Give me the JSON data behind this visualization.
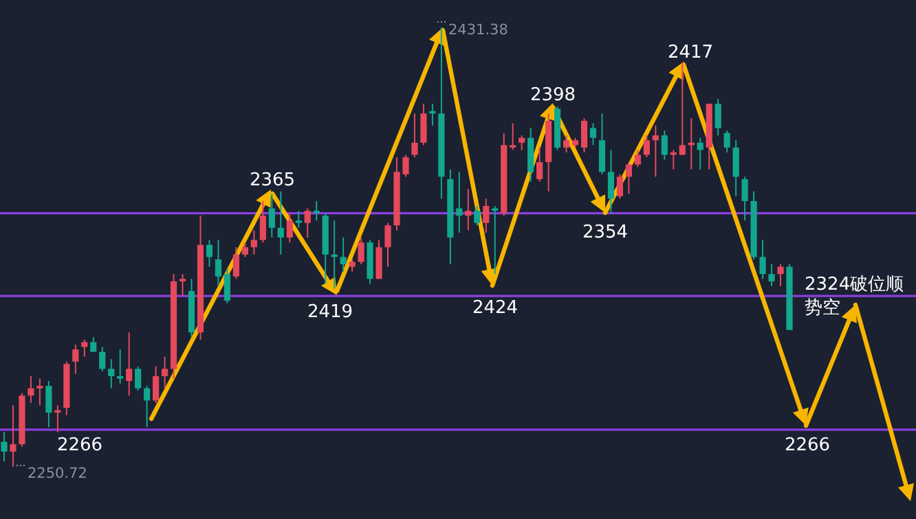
{
  "chart_data": {
    "type": "candlestick",
    "categories": [
      null,
      null,
      null,
      null,
      null,
      null,
      null,
      null,
      null,
      null,
      null,
      null,
      null,
      null,
      null,
      null,
      null,
      null,
      null,
      null,
      null,
      null,
      null,
      null,
      null,
      null,
      null,
      null,
      null,
      null,
      null,
      null,
      null,
      null,
      null,
      null,
      null,
      null,
      null,
      null,
      null,
      null,
      null,
      null,
      null,
      null,
      null,
      null,
      null,
      null,
      null,
      null,
      null,
      null,
      null,
      null,
      null,
      null,
      null,
      null,
      null,
      null,
      null,
      null,
      null,
      null,
      null,
      null,
      null,
      null,
      null,
      null,
      null,
      null,
      null,
      null,
      null,
      null,
      null,
      null,
      null,
      null,
      null,
      null,
      null,
      null,
      null,
      null,
      null
    ],
    "ohlc": [
      [
        2261,
        2265,
        2253,
        2257
      ],
      [
        2257,
        2276,
        2250.72,
        2260
      ],
      [
        2260,
        2281,
        2259,
        2280
      ],
      [
        2280,
        2288,
        2277,
        2283
      ],
      [
        2283,
        2287,
        2276,
        2284
      ],
      [
        2284,
        2286,
        2267,
        2273
      ],
      [
        2273,
        2276,
        2265,
        2274
      ],
      [
        2275,
        2294,
        2272,
        2293
      ],
      [
        2294,
        2301,
        2289,
        2299
      ],
      [
        2300,
        2303,
        2296,
        2302
      ],
      [
        2302,
        2304,
        2298,
        2298
      ],
      [
        2298,
        2300,
        2290,
        2291
      ],
      [
        2291,
        2295,
        2283,
        2288
      ],
      [
        2288,
        2299,
        2285,
        2287
      ],
      [
        2286,
        2306,
        2280,
        2291
      ],
      [
        2291,
        2292,
        2282,
        2283
      ],
      [
        2283,
        2284,
        2267,
        2278
      ],
      [
        2278,
        2292,
        2277,
        2288
      ],
      [
        2288,
        2296,
        2283,
        2291
      ],
      [
        2291,
        2330,
        2287,
        2327
      ],
      [
        2327,
        2330,
        2321,
        2328
      ],
      [
        2323,
        2328,
        2304,
        2306
      ],
      [
        2306,
        2354,
        2303,
        2342
      ],
      [
        2342,
        2344,
        2333,
        2337
      ],
      [
        2336,
        2344,
        2325,
        2329
      ],
      [
        2330,
        2332,
        2318,
        2319
      ],
      [
        2329,
        2341,
        2328,
        2338
      ],
      [
        2338,
        2343,
        2337,
        2341
      ],
      [
        2341,
        2348,
        2338,
        2344
      ],
      [
        2344,
        2360,
        2343,
        2354
      ],
      [
        2357,
        2363,
        2345,
        2349
      ],
      [
        2349,
        2364,
        2338,
        2345
      ],
      [
        2345,
        2355,
        2343,
        2352
      ],
      [
        2352,
        2356,
        2349,
        2351
      ],
      [
        2351,
        2357,
        2345,
        2356
      ],
      [
        2356,
        2360,
        2352,
        2355
      ],
      [
        2354,
        2355,
        2326,
        2338
      ],
      [
        2338,
        2352,
        2324,
        2337
      ],
      [
        2337,
        2345,
        2331,
        2334
      ],
      [
        2333,
        2336,
        2331,
        2335
      ],
      [
        2335,
        2345,
        2334,
        2343
      ],
      [
        2343,
        2344,
        2326,
        2328
      ],
      [
        2328,
        2344,
        2328,
        2341
      ],
      [
        2341,
        2351,
        2333,
        2350
      ],
      [
        2350,
        2378,
        2348,
        2372
      ],
      [
        2371,
        2379,
        2370,
        2378
      ],
      [
        2379,
        2396,
        2378,
        2384
      ],
      [
        2384,
        2400,
        2383,
        2396
      ],
      [
        2397,
        2400,
        2391,
        2396
      ],
      [
        2396,
        2431.38,
        2361,
        2370
      ],
      [
        2369,
        2373,
        2334,
        2345
      ],
      [
        2357,
        2372,
        2347,
        2354
      ],
      [
        2354,
        2365,
        2348,
        2356
      ],
      [
        2356,
        2358,
        2350,
        2351
      ],
      [
        2351,
        2361,
        2347,
        2358
      ],
      [
        2357,
        2358,
        2330,
        2356
      ],
      [
        2355,
        2388,
        2354,
        2383
      ],
      [
        2382,
        2392,
        2381,
        2383
      ],
      [
        2384,
        2387,
        2381,
        2386
      ],
      [
        2386,
        2390,
        2368,
        2372
      ],
      [
        2369,
        2382,
        2368,
        2376
      ],
      [
        2376,
        2396,
        2364,
        2393
      ],
      [
        2398,
        2399,
        2381,
        2382
      ],
      [
        2382,
        2387,
        2380,
        2385
      ],
      [
        2383,
        2386,
        2382,
        2385
      ],
      [
        2382,
        2394,
        2380,
        2393
      ],
      [
        2390,
        2392,
        2383,
        2386
      ],
      [
        2385,
        2396,
        2371,
        2372
      ],
      [
        2372,
        2381,
        2355,
        2361
      ],
      [
        2362,
        2371,
        2361,
        2370
      ],
      [
        2370,
        2376,
        2363,
        2375
      ],
      [
        2375,
        2381,
        2374,
        2379
      ],
      [
        2379,
        2387,
        2378,
        2385
      ],
      [
        2385,
        2391,
        2370,
        2387
      ],
      [
        2387,
        2389,
        2377,
        2379
      ],
      [
        2379,
        2381,
        2373,
        2380
      ],
      [
        2379,
        2417,
        2379,
        2383
      ],
      [
        2383,
        2394,
        2373,
        2384
      ],
      [
        2384,
        2386,
        2373,
        2381
      ],
      [
        2382,
        2400,
        2373,
        2400
      ],
      [
        2400,
        2402,
        2387,
        2390
      ],
      [
        2388,
        2389,
        2380,
        2382
      ],
      [
        2382,
        2385,
        2362,
        2370
      ],
      [
        2369,
        2370,
        2352,
        2360
      ],
      [
        2360,
        2364,
        2336,
        2337
      ],
      [
        2337,
        2344,
        2328,
        2330
      ],
      [
        2330,
        2334,
        2325,
        2327
      ],
      [
        2330,
        2334,
        2325,
        2333
      ],
      [
        2333,
        2334,
        2307,
        2307
      ]
    ],
    "ref_lines": [
      {
        "axis": "y",
        "value": 2355,
        "color": "#8b3fe0"
      },
      {
        "axis": "y",
        "value": 2321,
        "color": "#8b3fe0"
      },
      {
        "axis": "y",
        "value": 2266,
        "color": "#8b3fe0"
      }
    ],
    "annotations": [
      "2431.38",
      "2250.72",
      "2365",
      "2419",
      "2424",
      "2398",
      "2354",
      "2417",
      "2266",
      "2266",
      "2324破位顺势空"
    ]
  }
}
